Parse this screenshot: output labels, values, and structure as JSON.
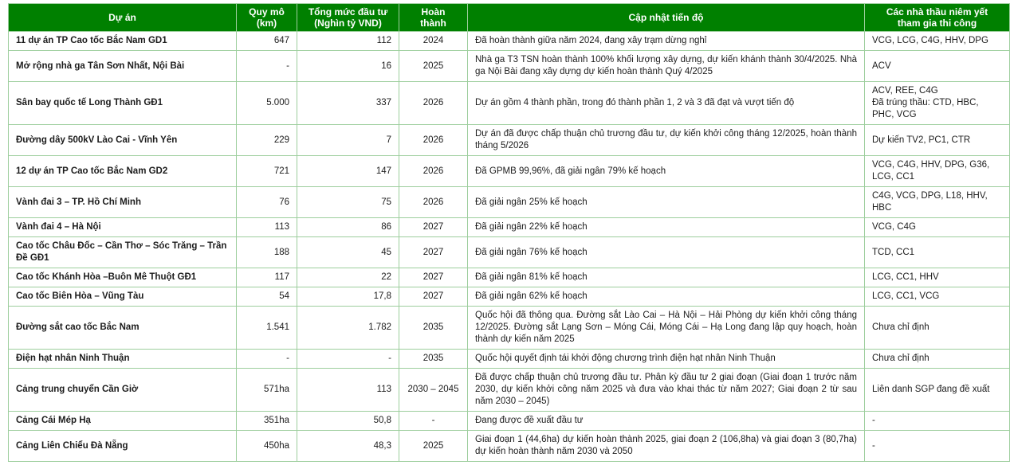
{
  "colors": {
    "header_bg": "#008000",
    "header_text": "#ffffff",
    "border": "#9dce9d",
    "body_text": "#1c1c1c"
  },
  "table": {
    "columns": [
      {
        "label": "Dự án"
      },
      {
        "label": "Quy mô\n(km)"
      },
      {
        "label": "Tổng mức đầu tư\n(Nghìn tỷ VND)"
      },
      {
        "label": "Hoàn\nthành"
      },
      {
        "label": "Cập nhật tiến độ"
      },
      {
        "label": "Các nhà thầu niêm yết\ntham gia thi công"
      }
    ],
    "rows": [
      {
        "project": "11 dự án TP Cao tốc Bắc Nam GD1",
        "scale": "647",
        "investment": "112",
        "completion": "2024",
        "progress": "Đã hoàn thành giữa năm 2024, đang xây trạm dừng nghỉ",
        "contractors": "VCG, LCG, C4G, HHV, DPG"
      },
      {
        "project": "Mở rộng nhà ga Tân Sơn Nhất, Nội Bài",
        "scale": "-",
        "investment": "16",
        "completion": "2025",
        "progress": "Nhà ga T3 TSN hoàn thành 100% khối lượng xây dựng, dự kiến khánh thành 30/4/2025. Nhà ga Nội Bài đang xây dựng dự kiến hoàn thành Quý 4/2025",
        "contractors": "ACV"
      },
      {
        "project": "Sân bay quốc tế Long Thành GĐ1",
        "scale": "5.000",
        "investment": "337",
        "completion": "2026",
        "progress": "Dự án gồm 4 thành phần, trong đó thành phần 1, 2 và 3 đã đạt và vượt tiến độ",
        "contractors": "ACV, REE, C4G\nĐã trúng thầu: CTD, HBC, PHC, VCG"
      },
      {
        "project": "Đường dây 500kV Lào Cai - Vĩnh Yên",
        "scale": "229",
        "investment": "7",
        "completion": "2026",
        "progress": "Dự án đã được chấp thuận chủ trương đầu tư, dự kiến khởi công tháng 12/2025, hoàn thành tháng 5/2026",
        "contractors": "Dự kiến TV2, PC1, CTR"
      },
      {
        "project": "12 dự án TP Cao tốc Bắc Nam GD2",
        "scale": "721",
        "investment": "147",
        "completion": "2026",
        "progress": "Đã GPMB 99,96%, đã giải ngân 79% kế hoạch",
        "contractors": "VCG, C4G, HHV, DPG, G36, LCG, CC1"
      },
      {
        "project": "Vành đai 3 – TP. Hồ Chí Minh",
        "scale": "76",
        "investment": "75",
        "completion": "2026",
        "progress": "Đã giải ngân 25% kế hoạch",
        "contractors": "C4G, VCG, DPG, L18, HHV, HBC"
      },
      {
        "project": "Vành đai 4 – Hà Nội",
        "scale": "113",
        "investment": "86",
        "completion": "2027",
        "progress": "Đã giải ngân 22% kế hoạch",
        "contractors": "VCG, C4G"
      },
      {
        "project": "Cao tốc Châu Đốc – Cần Thơ – Sóc Trăng – Trần Đề GĐ1",
        "scale": "188",
        "investment": "45",
        "completion": "2027",
        "progress": "Đã giải ngân 76% kế hoạch",
        "contractors": "TCD, CC1"
      },
      {
        "project": "Cao tốc Khánh Hòa –Buôn Mê Thuột GĐ1",
        "scale": "117",
        "investment": "22",
        "completion": "2027",
        "progress": "Đã giải ngân 81% kế hoạch",
        "contractors": "LCG, CC1, HHV"
      },
      {
        "project": "Cao tốc Biên Hòa – Vũng Tàu",
        "scale": "54",
        "investment": "17,8",
        "completion": "2027",
        "progress": "Đã giải ngân 62% kế hoạch",
        "contractors": "LCG, CC1, VCG"
      },
      {
        "project": "Đường sắt cao tốc Bắc Nam",
        "scale": "1.541",
        "investment": "1.782",
        "completion": "2035",
        "progress": "Quốc hội đã thông qua. Đường sắt Lào Cai – Hà Nội – Hải Phòng dự kiến khởi công tháng 12/2025. Đường sắt Lạng Sơn – Móng Cái, Móng Cái – Hạ Long đang lập quy hoạch, hoàn thành dự kiến năm 2025",
        "contractors": "Chưa chỉ định"
      },
      {
        "project": "Điện hạt nhân Ninh Thuận",
        "scale": "-",
        "investment": "-",
        "completion": "2035",
        "progress": "Quốc hội quyết định tái khởi động chương trình điện hạt nhân Ninh Thuận",
        "contractors": "Chưa chỉ định"
      },
      {
        "project": "Cảng trung chuyển Cần Giờ",
        "scale": "571ha",
        "investment": "113",
        "completion": "2030 – 2045",
        "progress": "Đã được chấp thuận chủ trương đầu tư. Phân kỳ đầu tư 2 giai đoạn (Giai đoạn 1 trước năm 2030, dự kiến khởi công năm 2025 và đưa vào khai thác từ năm 2027; Giai đoạn 2 từ sau năm 2030 – 2045)",
        "contractors": "Liên danh SGP đang đề xuất"
      },
      {
        "project": "Cảng Cái Mép Hạ",
        "scale": "351ha",
        "investment": "50,8",
        "completion": "-",
        "progress": "Đang được đề xuất đầu tư",
        "contractors": "-"
      },
      {
        "project": "Cảng Liên Chiểu Đà Nẵng",
        "scale": "450ha",
        "investment": "48,3",
        "completion": "2025",
        "progress": "Giai đoạn 1 (44,6ha) dự kiến hoàn thành 2025, giai đoạn 2 (106,8ha) và giai đoạn 3 (80,7ha) dự kiến hoàn thành năm 2030 và 2050",
        "contractors": "-"
      }
    ]
  }
}
